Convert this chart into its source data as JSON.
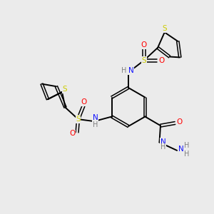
{
  "bg_color": "#ebebeb",
  "atom_colors": {
    "C": "#000000",
    "N": "#1010ff",
    "O": "#ff0000",
    "S": "#cccc00",
    "H": "#808080"
  },
  "bond_color": "#000000",
  "figsize": [
    3.0,
    3.0
  ],
  "dpi": 100
}
